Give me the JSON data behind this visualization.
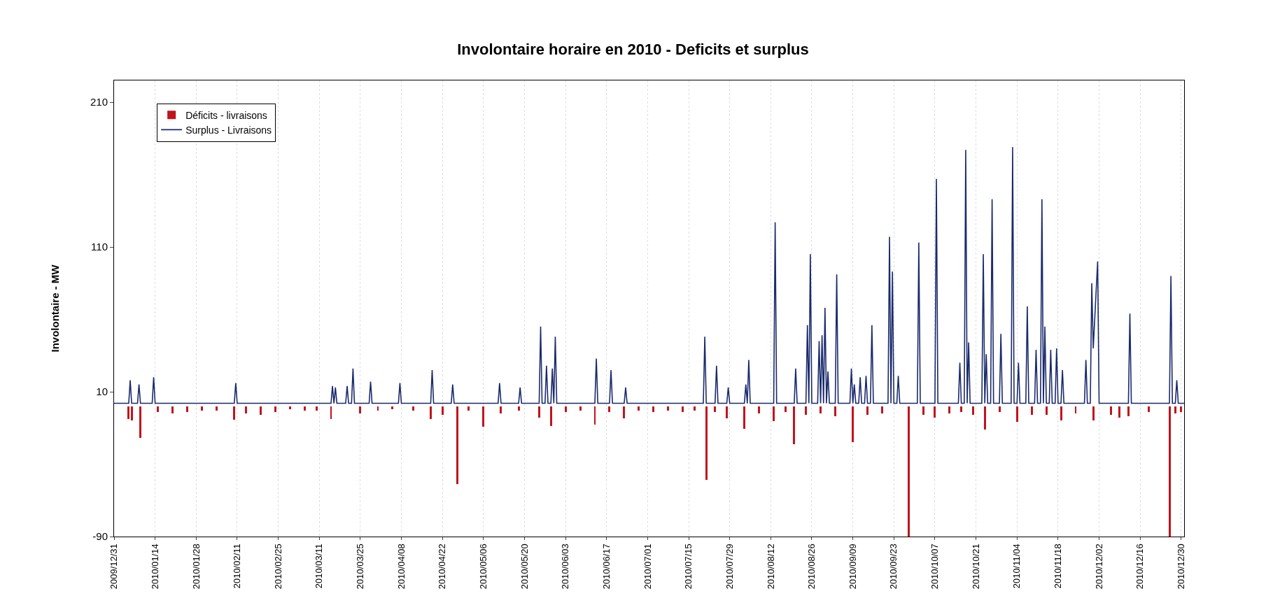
{
  "chart_data": {
    "type": "bar",
    "title": "Involontaire horaire en 2010 - Deficits et surplus",
    "ylabel": "Involontaire - MW",
    "xlim": [
      "2009-12-31",
      "2010-12-31"
    ],
    "ylim": [
      -90,
      225
    ],
    "yticks": [
      -90,
      10,
      110,
      210
    ],
    "xticks": [
      {
        "value": "2009-12-31",
        "label": "2009/12/31"
      },
      {
        "value": "2010-01-14",
        "label": "2010/01/14"
      },
      {
        "value": "2010-01-28",
        "label": "2010/01/28"
      },
      {
        "value": "2010-02-11",
        "label": "2010/02/11"
      },
      {
        "value": "2010-02-25",
        "label": "2010/02/25"
      },
      {
        "value": "2010-03-11",
        "label": "2010/03/11"
      },
      {
        "value": "2010-03-25",
        "label": "2010/03/25"
      },
      {
        "value": "2010-04-08",
        "label": "2010/04/08"
      },
      {
        "value": "2010-04-22",
        "label": "2010/04/22"
      },
      {
        "value": "2010-05-06",
        "label": "2010/05/06"
      },
      {
        "value": "2010-05-20",
        "label": "2010/05/20"
      },
      {
        "value": "2010-06-03",
        "label": "2010/06/03"
      },
      {
        "value": "2010-06-17",
        "label": "2010/06/17"
      },
      {
        "value": "2010-07-01",
        "label": "2010/07/01"
      },
      {
        "value": "2010-07-15",
        "label": "2010/07/15"
      },
      {
        "value": "2010-07-29",
        "label": "2010/07/29"
      },
      {
        "value": "2010-08-12",
        "label": "2010/08/12"
      },
      {
        "value": "2010-08-26",
        "label": "2010/08/26"
      },
      {
        "value": "2010-09-09",
        "label": "2010/09/09"
      },
      {
        "value": "2010-09-23",
        "label": "2010/09/23"
      },
      {
        "value": "2010-10-07",
        "label": "2010/10/07"
      },
      {
        "value": "2010-10-21",
        "label": "2010/10/21"
      },
      {
        "value": "2010-11-04",
        "label": "2010/11/04"
      },
      {
        "value": "2010-11-18",
        "label": "2010/11/18"
      },
      {
        "value": "2010-12-02",
        "label": "2010/12/02"
      },
      {
        "value": "2010-12-16",
        "label": "2010/12/16"
      },
      {
        "value": "2010-12-30",
        "label": "2010/12/30"
      }
    ],
    "grid": "x",
    "legend": "top left",
    "series": [
      {
        "name": "Déficits - livraisons",
        "color": "#c0141c",
        "x": [
          "2010-01-05",
          "2010-01-06",
          "2010-01-09",
          "2010-01-15",
          "2010-01-20",
          "2010-01-25",
          "2010-01-30",
          "2010-02-04",
          "2010-02-10",
          "2010-02-14",
          "2010-02-19",
          "2010-02-24",
          "2010-03-01",
          "2010-03-06",
          "2010-03-10",
          "2010-03-15",
          "2010-03-25",
          "2010-03-31",
          "2010-04-05",
          "2010-04-12",
          "2010-04-18",
          "2010-04-22",
          "2010-04-27",
          "2010-05-01",
          "2010-05-06",
          "2010-05-12",
          "2010-05-18",
          "2010-05-25",
          "2010-05-29",
          "2010-06-03",
          "2010-06-08",
          "2010-06-13",
          "2010-06-18",
          "2010-06-23",
          "2010-06-28",
          "2010-07-03",
          "2010-07-08",
          "2010-07-13",
          "2010-07-17",
          "2010-07-21",
          "2010-07-24",
          "2010-07-28",
          "2010-08-03",
          "2010-08-08",
          "2010-08-13",
          "2010-08-17",
          "2010-08-20",
          "2010-08-24",
          "2010-08-29",
          "2010-09-03",
          "2010-09-09",
          "2010-09-14",
          "2010-09-19",
          "2010-09-28",
          "2010-10-03",
          "2010-10-07",
          "2010-10-12",
          "2010-10-16",
          "2010-10-20",
          "2010-10-24",
          "2010-10-29",
          "2010-11-04",
          "2010-11-09",
          "2010-11-14",
          "2010-11-19",
          "2010-11-24",
          "2010-11-30",
          "2010-12-06",
          "2010-12-09",
          "2010-12-12",
          "2010-12-19",
          "2010-12-26",
          "2010-12-28",
          "2010-12-30"
        ],
        "values": [
          -9,
          -10,
          -22,
          -4,
          -5,
          -4,
          -3,
          -3,
          -9.5,
          -5,
          -6,
          -4,
          -2,
          -3,
          -3,
          -9,
          -5,
          -3,
          -2,
          -3,
          -9,
          -6,
          -54,
          -3,
          -14,
          -5,
          -3,
          -8,
          -13.5,
          -4,
          -3,
          -12.5,
          -4,
          -8.5,
          -3,
          -4,
          -3,
          -4,
          -3,
          -51,
          -4,
          -8.5,
          -15.5,
          -5,
          -10.5,
          -4,
          -26,
          -6,
          -5,
          -7,
          -25,
          -6,
          -5,
          -90,
          -6,
          -8,
          -5,
          -4,
          -6,
          -16,
          -4,
          -11,
          -6,
          -6,
          -10,
          -5,
          -10,
          -6,
          -8,
          -7,
          -4,
          -90,
          -5,
          -4
        ]
      },
      {
        "name": "Surplus - Livraisons",
        "type": "line",
        "color": "#1a2a6c",
        "x": [
          "2009-12-31",
          "2010-01-05",
          "2010-01-05T12:00",
          "2010-01-06",
          "2010-01-08",
          "2010-01-08T12:00",
          "2010-01-09",
          "2010-01-13",
          "2010-01-13T12:00",
          "2010-01-14",
          "2010-02-10",
          "2010-02-10T12:00",
          "2010-02-11",
          "2010-03-15",
          "2010-03-15T12:00",
          "2010-03-16",
          "2010-03-16T12:00",
          "2010-03-17",
          "2010-03-20",
          "2010-03-20T12:00",
          "2010-03-21",
          "2010-03-22",
          "2010-03-22T12:00",
          "2010-03-23",
          "2010-03-28",
          "2010-03-28T12:00",
          "2010-03-29",
          "2010-04-07",
          "2010-04-07T12:00",
          "2010-04-08",
          "2010-04-18",
          "2010-04-18T12:00",
          "2010-04-19",
          "2010-04-25",
          "2010-04-25T12:00",
          "2010-04-26",
          "2010-05-11",
          "2010-05-11T12:00",
          "2010-05-12",
          "2010-05-18",
          "2010-05-18T12:00",
          "2010-05-19",
          "2010-05-25",
          "2010-05-25T12:00",
          "2010-05-26",
          "2010-05-27",
          "2010-05-27T12:00",
          "2010-05-28",
          "2010-05-29",
          "2010-05-29T12:00",
          "2010-05-30",
          "2010-05-30T12:00",
          "2010-05-31",
          "2010-06-13",
          "2010-06-13T12:00",
          "2010-06-14",
          "2010-06-18",
          "2010-06-18T12:00",
          "2010-06-19",
          "2010-06-23",
          "2010-06-23T12:00",
          "2010-06-24",
          "2010-07-20",
          "2010-07-20T12:00",
          "2010-07-21",
          "2010-07-24",
          "2010-07-24T12:00",
          "2010-07-25",
          "2010-07-28",
          "2010-07-28T12:00",
          "2010-07-29",
          "2010-08-03",
          "2010-08-03T12:00",
          "2010-08-04",
          "2010-08-04T12:00",
          "2010-08-05",
          "2010-08-13",
          "2010-08-13T12:00",
          "2010-08-14",
          "2010-08-20",
          "2010-08-20T12:00",
          "2010-08-21",
          "2010-08-24",
          "2010-08-24T12:00",
          "2010-08-25",
          "2010-08-25T12:00",
          "2010-08-26",
          "2010-08-28",
          "2010-08-28T12:00",
          "2010-08-29",
          "2010-08-29T12:00",
          "2010-08-30",
          "2010-08-30T12:00",
          "2010-08-31",
          "2010-08-31T12:00",
          "2010-09-01",
          "2010-09-03",
          "2010-09-03T12:00",
          "2010-09-04",
          "2010-09-08",
          "2010-09-08T12:00",
          "2010-09-09",
          "2010-09-09T12:00",
          "2010-09-10",
          "2010-09-11",
          "2010-09-11T12:00",
          "2010-09-12",
          "2010-09-13",
          "2010-09-13T12:00",
          "2010-09-14",
          "2010-09-15",
          "2010-09-15T12:00",
          "2010-09-16",
          "2010-09-21",
          "2010-09-21T12:00",
          "2010-09-22",
          "2010-09-22T12:00",
          "2010-09-23",
          "2010-09-24",
          "2010-09-24T12:00",
          "2010-09-25",
          "2010-10-01",
          "2010-10-01T12:00",
          "2010-10-02",
          "2010-10-07",
          "2010-10-07T12:00",
          "2010-10-08",
          "2010-10-15",
          "2010-10-15T12:00",
          "2010-10-16",
          "2010-10-17",
          "2010-10-17T12:00",
          "2010-10-18",
          "2010-10-18T12:00",
          "2010-10-19",
          "2010-10-23",
          "2010-10-23T12:00",
          "2010-10-24",
          "2010-10-24T12:00",
          "2010-10-25",
          "2010-10-26",
          "2010-10-26T12:00",
          "2010-10-27",
          "2010-10-29",
          "2010-10-29T12:00",
          "2010-10-30",
          "2010-11-02",
          "2010-11-02T12:00",
          "2010-11-03",
          "2010-11-04",
          "2010-11-04T12:00",
          "2010-11-05",
          "2010-11-07",
          "2010-11-07T12:00",
          "2010-11-08",
          "2010-11-10",
          "2010-11-10T12:00",
          "2010-11-11",
          "2010-11-12",
          "2010-11-12T12:00",
          "2010-11-13",
          "2010-11-13T12:00",
          "2010-11-14",
          "2010-11-15",
          "2010-11-15T12:00",
          "2010-11-16",
          "2010-11-17",
          "2010-11-17T12:00",
          "2010-11-18",
          "2010-11-19",
          "2010-11-19T12:00",
          "2010-11-20",
          "2010-11-27",
          "2010-11-27T12:00",
          "2010-11-28",
          "2010-11-29",
          "2010-11-29T12:00",
          "2010-11-30",
          "2010-12-01T12:00",
          "2010-12-02",
          "2010-12-12",
          "2010-12-12T12:00",
          "2010-12-13",
          "2010-12-26",
          "2010-12-26T12:00",
          "2010-12-27",
          "2010-12-28",
          "2010-12-28T12:00",
          "2010-12-29",
          "2010-12-31"
        ],
        "values": [
          2,
          2,
          18,
          2,
          2,
          15,
          2,
          2,
          20,
          2,
          2,
          16,
          2,
          2,
          14,
          2,
          13,
          2,
          2,
          14,
          2,
          2,
          26,
          2,
          2,
          17,
          2,
          2,
          16,
          2,
          2,
          25,
          2,
          2,
          15,
          2,
          2,
          16,
          2,
          2,
          13,
          2,
          2,
          55,
          2,
          2,
          28,
          2,
          2,
          26,
          2,
          48,
          2,
          2,
          33,
          2,
          2,
          25,
          2,
          2,
          13,
          2,
          2,
          48,
          2,
          2,
          28,
          2,
          2,
          13,
          2,
          2,
          15,
          2,
          32,
          2,
          2,
          127,
          2,
          2,
          26,
          2,
          2,
          56,
          2,
          105,
          2,
          2,
          45,
          2,
          49,
          2,
          68,
          2,
          24,
          2,
          2,
          91,
          2,
          2,
          26,
          2,
          15,
          2,
          2,
          20,
          2,
          2,
          21,
          2,
          2,
          56,
          2,
          2,
          117,
          2,
          93,
          2,
          2,
          21,
          2,
          2,
          113,
          2,
          2,
          157,
          2,
          2,
          30,
          2,
          2,
          177,
          2,
          44,
          2,
          2,
          105,
          2,
          36,
          2,
          2,
          143,
          2,
          2,
          50,
          2,
          2,
          179,
          2,
          2,
          30,
          2,
          2,
          69,
          2,
          2,
          39,
          2,
          2,
          143,
          2,
          55,
          2,
          2,
          39,
          2,
          2,
          40,
          2,
          2,
          25,
          2,
          2,
          32,
          2,
          2,
          85,
          40,
          100,
          2,
          2,
          64,
          2,
          2,
          90,
          2,
          2,
          18,
          2,
          2
        ]
      }
    ]
  }
}
